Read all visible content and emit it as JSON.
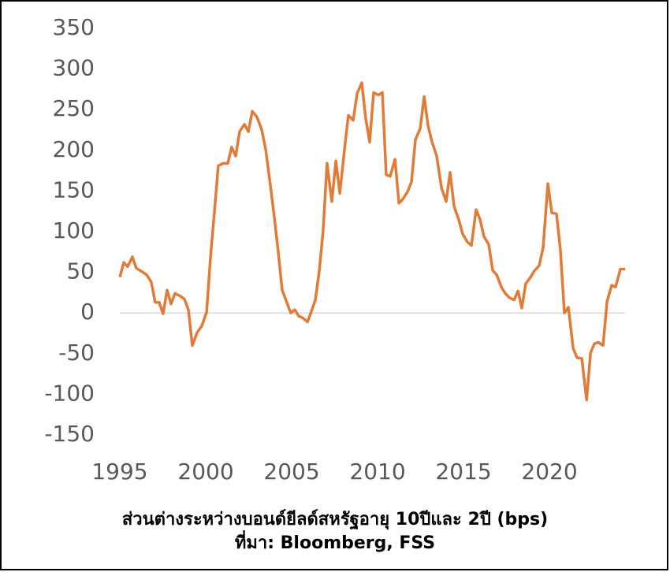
{
  "chart_data": {
    "type": "line",
    "title": "ส่วนต่างระหว่างบอนด์ยีลด์สหรัฐอายุ 10ปีและ 2ปี (bps)",
    "subtitle": "ที่มา: Bloomberg, FSS",
    "color": "#e07b39",
    "x": [
      1995,
      1995.23,
      1995.46,
      1995.73,
      1995.96,
      1996.28,
      1996.56,
      1996.83,
      1997.06,
      1997.29,
      1997.52,
      1997.75,
      1997.98,
      1998.21,
      1998.49,
      1998.76,
      1998.99,
      1999.22,
      1999.5,
      1999.77,
      2000.05,
      2000.28,
      2000.5,
      2000.73,
      2001.01,
      2001.28,
      2001.51,
      2001.74,
      2001.97,
      2002.25,
      2002.48,
      2002.71,
      2002.98,
      2003.26,
      2003.49,
      2003.76,
      2003.99,
      2004.22,
      2004.45,
      2004.68,
      2004.95,
      2005.18,
      2005.41,
      2005.64,
      2005.92,
      2006.15,
      2006.38,
      2006.61,
      2006.83,
      2007.06,
      2007.34,
      2007.57,
      2007.8,
      2008.07,
      2008.3,
      2008.58,
      2008.81,
      2009.08,
      2009.31,
      2009.54,
      2009.77,
      2010.05,
      2010.28,
      2010.5,
      2010.73,
      2011.01,
      2011.24,
      2011.47,
      2011.74,
      2011.97,
      2012.2,
      2012.48,
      2012.71,
      2012.94,
      2013.17,
      2013.44,
      2013.72,
      2013.99,
      2014.22,
      2014.45,
      2014.72,
      2014.95,
      2015.23,
      2015.46,
      2015.73,
      2015.96,
      2016.19,
      2016.47,
      2016.7,
      2016.93,
      2017.2,
      2017.43,
      2017.66,
      2017.94,
      2018.17,
      2018.39,
      2018.62,
      2018.9,
      2019.13,
      2019.4,
      2019.63,
      2019.91,
      2020.14,
      2020.41,
      2020.64,
      2020.87,
      2021.1,
      2021.38,
      2021.61,
      2021.88,
      2022.16,
      2022.39,
      2022.61,
      2022.84,
      2023.12,
      2023.35,
      2023.62,
      2023.85,
      2024.13,
      2024.4
    ],
    "values": [
      44,
      62,
      57,
      69,
      55,
      51,
      47,
      38,
      13,
      13,
      -1,
      28,
      11,
      24,
      21,
      17,
      4,
      -40,
      -24,
      -16,
      1,
      69,
      123,
      181,
      184,
      184,
      204,
      193,
      223,
      232,
      223,
      248,
      241,
      225,
      201,
      157,
      118,
      75,
      28,
      15,
      0,
      4,
      -4,
      -6,
      -11,
      2,
      16,
      52,
      101,
      184,
      137,
      187,
      147,
      201,
      243,
      237,
      270,
      283,
      239,
      210,
      271,
      268,
      271,
      170,
      168,
      189,
      135,
      140,
      149,
      161,
      213,
      227,
      266,
      230,
      210,
      193,
      154,
      137,
      173,
      131,
      115,
      97,
      87,
      83,
      127,
      115,
      94,
      84,
      52,
      47,
      32,
      24,
      19,
      16,
      27,
      6,
      36,
      44,
      52,
      58,
      80,
      159,
      123,
      122,
      77,
      0,
      7,
      -44,
      -55,
      -56,
      -107,
      -49,
      -38,
      -36,
      -40,
      14,
      34,
      32,
      54,
      54
    ],
    "xlim": [
      1995,
      2024.4
    ],
    "ylim": [
      -150,
      350
    ],
    "xticks": [
      1995,
      2000,
      2005,
      2010,
      2015,
      2020
    ],
    "yticks": [
      -150,
      -100,
      -50,
      0,
      50,
      100,
      150,
      200,
      250,
      300,
      350
    ],
    "grid": false
  }
}
